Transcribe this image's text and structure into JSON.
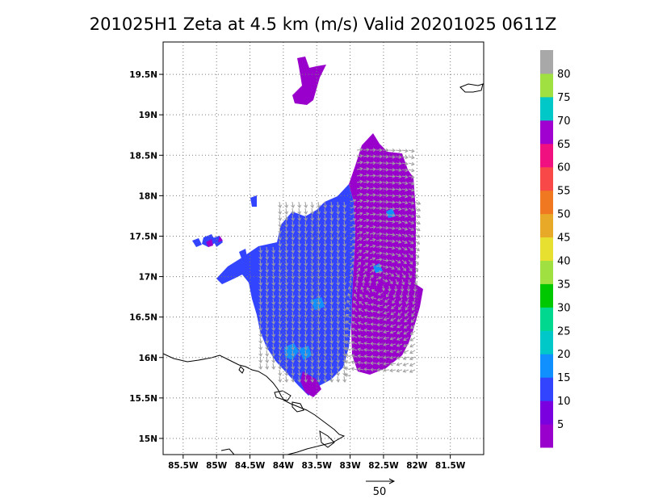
{
  "title": "201025H1  Zeta at 4.5 km (m/s) Valid 20201025  0611Z",
  "map": {
    "lon_range": [
      -85.8,
      -81.0
    ],
    "lat_range": [
      14.8,
      19.9
    ],
    "x_ticks": [
      {
        "value": -85.5,
        "label": "85.5W"
      },
      {
        "value": -85.0,
        "label": "85W"
      },
      {
        "value": -84.5,
        "label": "84.5W"
      },
      {
        "value": -84.0,
        "label": "84W"
      },
      {
        "value": -83.5,
        "label": "83.5W"
      },
      {
        "value": -83.0,
        "label": "83W"
      },
      {
        "value": -82.5,
        "label": "82.5W"
      },
      {
        "value": -82.0,
        "label": "82W"
      },
      {
        "value": -81.5,
        "label": "81.5W"
      }
    ],
    "y_ticks": [
      {
        "value": 15.0,
        "label": "15N"
      },
      {
        "value": 15.5,
        "label": "15.5N"
      },
      {
        "value": 16.0,
        "label": "16N"
      },
      {
        "value": 16.5,
        "label": "16.5N"
      },
      {
        "value": 17.0,
        "label": "17N"
      },
      {
        "value": 17.5,
        "label": "17.5N"
      },
      {
        "value": 18.0,
        "label": "18N"
      },
      {
        "value": 18.5,
        "label": "18.5N"
      },
      {
        "value": 19.0,
        "label": "19N"
      },
      {
        "value": 19.5,
        "label": "19.5N"
      }
    ],
    "grid": "dotted",
    "coastline_color": "#000000",
    "wind_vector_color": "#a0a0a0"
  },
  "colorbar": {
    "colors": [
      "#9900cc",
      "#7a00e0",
      "#3344ff",
      "#1090ff",
      "#00c8c8",
      "#00d890",
      "#00c800",
      "#a0e040",
      "#e8e030",
      "#e8a828",
      "#f07820",
      "#f84848",
      "#f01080",
      "#a000d0",
      "#00c8c8",
      "#a0e040",
      "#a8a8a8"
    ],
    "labels": [
      "5",
      "10",
      "15",
      "20",
      "25",
      "30",
      "35",
      "40",
      "45",
      "50",
      "55",
      "60",
      "65",
      "70",
      "75",
      "80"
    ]
  },
  "reference_vector": {
    "label": "50"
  }
}
